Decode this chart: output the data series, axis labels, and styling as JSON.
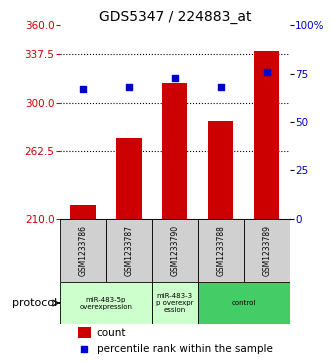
{
  "title": "GDS5347 / 224883_at",
  "samples": [
    "GSM1233786",
    "GSM1233787",
    "GSM1233790",
    "GSM1233788",
    "GSM1233789"
  ],
  "bar_values": [
    221,
    273,
    315,
    286,
    340
  ],
  "percentile_values": [
    67,
    68,
    73,
    68,
    76
  ],
  "ylim_left": [
    210,
    360
  ],
  "ylim_right": [
    0,
    100
  ],
  "yticks_left": [
    210,
    262.5,
    300,
    337.5,
    360
  ],
  "yticks_right": [
    0,
    25,
    50,
    75,
    100
  ],
  "bar_color": "#cc0000",
  "dot_color": "#0000cc",
  "hline_values": [
    262.5,
    300,
    337.5
  ],
  "light_green": "#ccffcc",
  "dark_green": "#44cc66",
  "gray_box": "#d0d0d0",
  "axis_left_color": "#cc0000",
  "axis_right_color": "#0000cc",
  "bg": "#ffffff",
  "protocol_rows": [
    {
      "start": 0,
      "end": 1,
      "color": "#ccffcc",
      "label": "miR-483-5p\noverexpression"
    },
    {
      "start": 2,
      "end": 2,
      "color": "#ccffcc",
      "label": "miR-483-3\np overexpr\nession"
    },
    {
      "start": 3,
      "end": 4,
      "color": "#44cc66",
      "label": "control"
    }
  ]
}
